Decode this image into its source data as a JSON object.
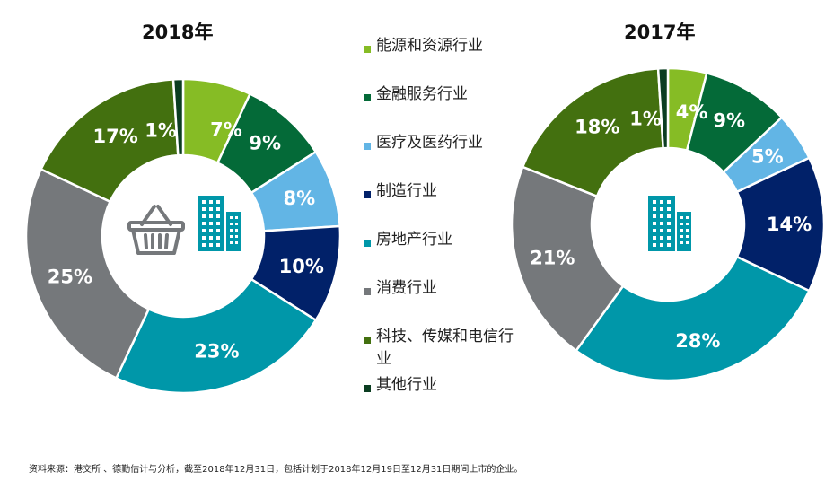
{
  "chart_data": [
    {
      "type": "pie",
      "variant": "donut",
      "title": "2018年",
      "categories": [
        "能源和资源行业",
        "金融服务行业",
        "医疗及医药行业",
        "制造行业",
        "房地产行业",
        "消费行业",
        "科技、传媒和电信行业",
        "其他行业"
      ],
      "values": [
        7,
        9,
        8,
        10,
        23,
        25,
        17,
        1
      ],
      "data_labels": [
        "7%",
        "9%",
        "8%",
        "10%",
        "23%",
        "25%",
        "17%",
        "1%"
      ],
      "center_icons": [
        "shopping-basket-icon",
        "building-icon"
      ]
    },
    {
      "type": "pie",
      "variant": "donut",
      "title": "2017年",
      "categories": [
        "能源和资源行业",
        "金融服务行业",
        "医疗及医药行业",
        "制造行业",
        "房地产行业",
        "消费行业",
        "科技、传媒和电信行业",
        "其他行业"
      ],
      "values": [
        4,
        9,
        5,
        14,
        28,
        21,
        18,
        1
      ],
      "data_labels": [
        "4%",
        "9%",
        "5%",
        "14%",
        "28%",
        "21%",
        "18%",
        "1%"
      ],
      "center_icons": [
        "building-icon"
      ]
    }
  ],
  "legend": [
    {
      "label": "能源和资源行业",
      "color": "#86bc25"
    },
    {
      "label": "金融服务行业",
      "color": "#046a38"
    },
    {
      "label": "医疗及医药行业",
      "color": "#62b5e5"
    },
    {
      "label": "制造行业",
      "color": "#012169"
    },
    {
      "label": "房地产行业",
      "color": "#0097a9"
    },
    {
      "label": "消费行业",
      "color": "#75787b"
    },
    {
      "label": "科技、传媒和电信行业",
      "color": "#43700f"
    },
    {
      "label": "其他行业",
      "color": "#0b3d21"
    }
  ],
  "colors": {
    "energy": "#86bc25",
    "financial": "#046a38",
    "healthcare": "#62b5e5",
    "manufacturing": "#012169",
    "realestate": "#0097a9",
    "consumer": "#75787b",
    "tmt": "#43700f",
    "other": "#0b3d21",
    "icon_teal": "#0097a9",
    "icon_gray": "#75787b"
  },
  "footnote": "资料来源：港交所 、德勤估计与分析，截至2018年12月31日，包括计划于2018年12月19日至12月31日期间上市的企业。"
}
